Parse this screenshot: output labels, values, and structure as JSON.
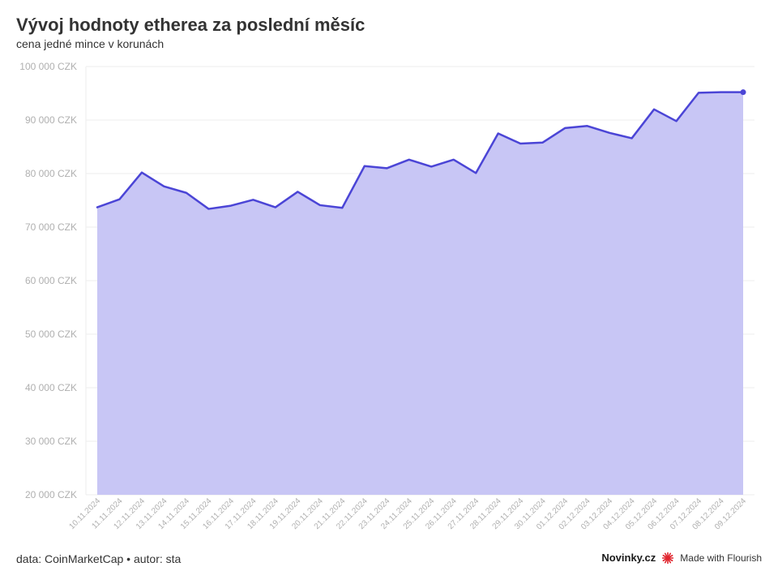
{
  "header": {
    "title": "Vývoj hodnoty etherea za poslední měsíc",
    "subtitle": "cena jedné mince v korunách"
  },
  "footer": {
    "source": "data: CoinMarketCap • autor: sta",
    "brand": "Novinky.cz",
    "flourish": "Made with Flourish"
  },
  "colors": {
    "line": "#4b45d6",
    "area": "#c8c6f5",
    "grid": "#eeeeee",
    "tick_text": "#b0b0b0",
    "flourish": "#e0262f"
  },
  "chart_data": {
    "type": "area",
    "title": "Vývoj hodnoty etherea za poslední měsíc",
    "subtitle": "cena jedné mince v korunách",
    "xlabel": "",
    "ylabel": "",
    "ylim": [
      20000,
      100000
    ],
    "yticks": [
      20000,
      30000,
      40000,
      50000,
      60000,
      70000,
      80000,
      90000,
      100000
    ],
    "ytick_labels": [
      "20 000 CZK",
      "30 000 CZK",
      "40 000 CZK",
      "50 000 CZK",
      "60 000 CZK",
      "70 000 CZK",
      "80 000 CZK",
      "90 000 CZK",
      "100 000 CZK"
    ],
    "grid": true,
    "legend": "none",
    "categories": [
      "10.11.2024",
      "11.11.2024",
      "12.11.2024",
      "13.11.2024",
      "14.11.2024",
      "15.11.2024",
      "16.11.2024",
      "17.11.2024",
      "18.11.2024",
      "19.11.2024",
      "20.11.2024",
      "21.11.2024",
      "22.11.2024",
      "23.11.2024",
      "24.11.2024",
      "25.11.2024",
      "26.11.2024",
      "27.11.2024",
      "28.11.2024",
      "29.11.2024",
      "30.11.2024",
      "01.12.2024",
      "02.12.2024",
      "03.12.2024",
      "04.12.2024",
      "05.12.2024",
      "06.12.2024",
      "07.12.2024",
      "08.12.2024",
      "09.12.2024"
    ],
    "series": [
      {
        "values": [
          73700,
          75200,
          80200,
          77600,
          76400,
          73400,
          74000,
          75100,
          73700,
          76600,
          74100,
          73600,
          81400,
          81000,
          82600,
          81300,
          82600,
          80100,
          87500,
          85600,
          85800,
          88500,
          88900,
          87600,
          86600,
          92000,
          89800,
          95100,
          95200,
          95200
        ]
      }
    ]
  }
}
